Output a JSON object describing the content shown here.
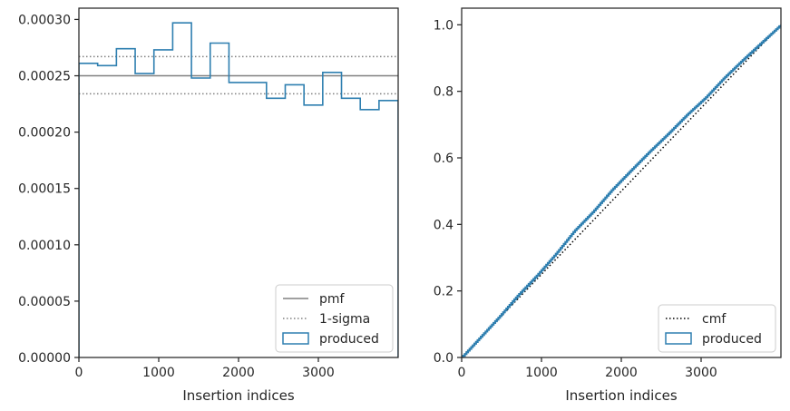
{
  "chart_data": [
    {
      "type": "histogram",
      "xlabel": "Insertion indices",
      "ylabel": "",
      "xlim": [
        0,
        4000
      ],
      "ylim": [
        0,
        0.00031
      ],
      "x_ticks": [
        0,
        1000,
        2000,
        3000
      ],
      "x_tick_labels": [
        "0",
        "1000",
        "2000",
        "3000"
      ],
      "y_ticks": [
        0,
        5e-05,
        0.0001,
        0.00015,
        0.0002,
        0.00025,
        0.0003
      ],
      "y_tick_labels": [
        "0.00000",
        "0.00005",
        "0.00010",
        "0.00015",
        "0.00020",
        "0.00025",
        "0.00030"
      ],
      "grid": false,
      "legend_position": "lower-right",
      "series": [
        {
          "name": "pmf",
          "kind": "hline",
          "y": 0.00025,
          "color": "#808080",
          "linestyle": "solid"
        },
        {
          "name": "1-sigma",
          "kind": "hlines",
          "y": [
            0.000267,
            0.000234
          ],
          "color": "#808080",
          "linestyle": "dotted"
        },
        {
          "name": "produced",
          "kind": "step",
          "color": "#2e7fb0",
          "bin_edges": [
            0,
            235,
            470,
            705,
            940,
            1175,
            1410,
            1645,
            1880,
            2115,
            2350,
            2585,
            2820,
            3055,
            3290,
            3525,
            3760,
            4000
          ],
          "values": [
            0.000261,
            0.000259,
            0.000274,
            0.000252,
            0.000273,
            0.000297,
            0.000248,
            0.000279,
            0.000244,
            0.000244,
            0.00023,
            0.000242,
            0.000224,
            0.000253,
            0.00023,
            0.00022,
            0.000228
          ]
        }
      ]
    },
    {
      "type": "line",
      "xlabel": "Insertion indices",
      "ylabel": "",
      "xlim": [
        0,
        4000
      ],
      "ylim": [
        0,
        1.05
      ],
      "x_ticks": [
        0,
        1000,
        2000,
        3000
      ],
      "x_tick_labels": [
        "0",
        "1000",
        "2000",
        "3000"
      ],
      "y_ticks": [
        0,
        0.2,
        0.4,
        0.6,
        0.8,
        1.0
      ],
      "y_tick_labels": [
        "0.0",
        "0.2",
        "0.4",
        "0.6",
        "0.8",
        "1.0"
      ],
      "grid": false,
      "legend_position": "lower-right",
      "series": [
        {
          "name": "cmf",
          "kind": "line",
          "color": "#000000",
          "linestyle": "dotted",
          "x": [
            0,
            4000
          ],
          "y": [
            0,
            1.0
          ]
        },
        {
          "name": "produced",
          "kind": "step-line",
          "color": "#2e7fb0",
          "x": [
            0,
            235,
            470,
            705,
            940,
            1175,
            1410,
            1645,
            1880,
            2115,
            2350,
            2585,
            2820,
            3055,
            3290,
            3525,
            3760,
            4000
          ],
          "y": [
            0,
            0.061,
            0.122,
            0.187,
            0.246,
            0.31,
            0.38,
            0.438,
            0.503,
            0.561,
            0.618,
            0.672,
            0.729,
            0.781,
            0.841,
            0.895,
            0.947,
            1.0
          ]
        }
      ]
    }
  ]
}
